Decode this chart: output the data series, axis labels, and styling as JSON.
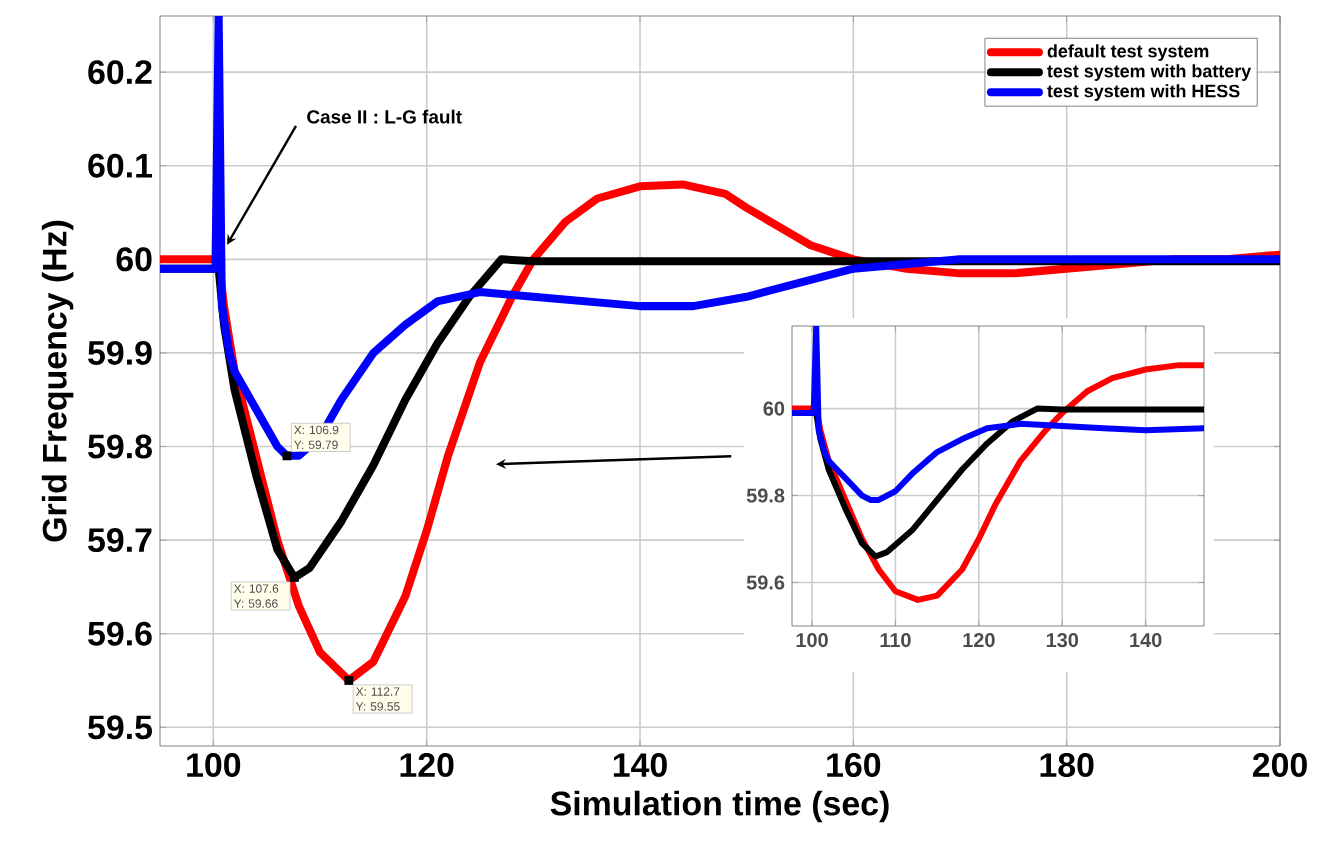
{
  "chart_data": [
    {
      "type": "line",
      "xlabel": "Simulation time (sec)",
      "ylabel": "Grid Frequency (Hz)",
      "xlim": [
        95,
        200
      ],
      "ylim": [
        59.48,
        60.26
      ],
      "xticks": [
        100,
        120,
        140,
        160,
        180,
        200
      ],
      "yticks": [
        59.5,
        59.6,
        59.7,
        59.8,
        59.9,
        60,
        60.1,
        60.2
      ],
      "grid": true,
      "legend": "top right",
      "series": [
        {
          "name": "default test system",
          "color": "#ff0000",
          "x": [
            95,
            100.5,
            101,
            102,
            104,
            106,
            108,
            110,
            112.7,
            115,
            118,
            120,
            122,
            125,
            128,
            130,
            133,
            136,
            140,
            144,
            148,
            150,
            153,
            156,
            160,
            165,
            170,
            175,
            180,
            185,
            190,
            195,
            200
          ],
          "values": [
            60.0,
            60.0,
            59.95,
            59.88,
            59.79,
            59.7,
            59.63,
            59.58,
            59.55,
            59.57,
            59.64,
            59.71,
            59.79,
            59.89,
            59.96,
            60.0,
            60.04,
            60.065,
            60.078,
            60.08,
            60.07,
            60.055,
            60.035,
            60.015,
            60.0,
            59.99,
            59.985,
            59.985,
            59.99,
            59.995,
            60.0,
            60.0,
            60.005
          ]
        },
        {
          "name": "test system with battery",
          "color": "#000000",
          "x": [
            95,
            100.5,
            101,
            102,
            104,
            106,
            107.6,
            109,
            112,
            115,
            118,
            121,
            124,
            127,
            130,
            140,
            160,
            180,
            200
          ],
          "values": [
            59.99,
            59.99,
            59.93,
            59.86,
            59.77,
            59.69,
            59.66,
            59.67,
            59.72,
            59.78,
            59.85,
            59.91,
            59.96,
            60.0,
            59.998,
            59.998,
            59.998,
            59.998,
            59.998
          ]
        },
        {
          "name": "test system with HESS",
          "color": "#0000ff",
          "x": [
            95,
            100.2,
            100.5,
            100.8,
            101.5,
            102,
            103,
            104,
            106,
            106.9,
            108,
            110,
            112,
            115,
            118,
            121,
            125,
            130,
            135,
            140,
            145,
            150,
            155,
            160,
            165,
            170,
            200
          ],
          "values": [
            59.99,
            59.99,
            60.26,
            59.95,
            59.9,
            59.88,
            59.86,
            59.84,
            59.8,
            59.79,
            59.79,
            59.81,
            59.85,
            59.9,
            59.93,
            59.955,
            59.965,
            59.96,
            59.955,
            59.95,
            59.95,
            59.96,
            59.975,
            59.99,
            59.995,
            60.0,
            60.0
          ]
        }
      ],
      "annotations": [
        {
          "text": "Case II : L-G fault",
          "x": 101,
          "y": 60.01
        },
        {
          "text": "X: 106.9 Y: 59.79",
          "x": 106.9,
          "y": 59.79
        },
        {
          "text": "X: 107.6 Y: 59.66",
          "x": 107.6,
          "y": 59.66
        },
        {
          "text": "X: 112.7 Y: 59.55",
          "x": 112.7,
          "y": 59.55
        }
      ]
    },
    {
      "type": "line",
      "xlim": [
        97.6,
        147
      ],
      "ylim": [
        59.5,
        60.19
      ],
      "xticks": [
        100,
        110,
        120,
        130,
        140
      ],
      "yticks": [
        59.6,
        59.8,
        60
      ],
      "grid": true,
      "series": [
        {
          "color": "#ff0000",
          "x": [
            97.6,
            100.5,
            101,
            102,
            104,
            106,
            108,
            110,
            112.7,
            115,
            118,
            120,
            122,
            125,
            128,
            130,
            133,
            136,
            140,
            144,
            147
          ],
          "values": [
            60.0,
            60.0,
            59.95,
            59.88,
            59.79,
            59.7,
            59.63,
            59.58,
            59.56,
            59.57,
            59.63,
            59.7,
            59.78,
            59.88,
            59.95,
            59.99,
            60.04,
            60.07,
            60.09,
            60.1,
            60.1
          ]
        },
        {
          "color": "#000000",
          "x": [
            97.6,
            100.5,
            101,
            102,
            104,
            106,
            107.6,
            109,
            112,
            115,
            118,
            121,
            124,
            127,
            130,
            140,
            147
          ],
          "values": [
            59.99,
            59.99,
            59.93,
            59.86,
            59.77,
            59.69,
            59.66,
            59.67,
            59.72,
            59.79,
            59.86,
            59.92,
            59.97,
            60.0,
            59.998,
            59.998,
            59.998
          ]
        },
        {
          "color": "#0000ff",
          "x": [
            97.6,
            100.2,
            100.5,
            100.8,
            101.5,
            102,
            103,
            104,
            106,
            107,
            108,
            110,
            112,
            115,
            118,
            121,
            125,
            130,
            135,
            140,
            147
          ],
          "values": [
            59.99,
            59.99,
            60.19,
            59.95,
            59.9,
            59.88,
            59.86,
            59.84,
            59.8,
            59.79,
            59.79,
            59.81,
            59.85,
            59.9,
            59.93,
            59.955,
            59.965,
            59.96,
            59.955,
            59.95,
            59.955
          ]
        }
      ]
    }
  ]
}
